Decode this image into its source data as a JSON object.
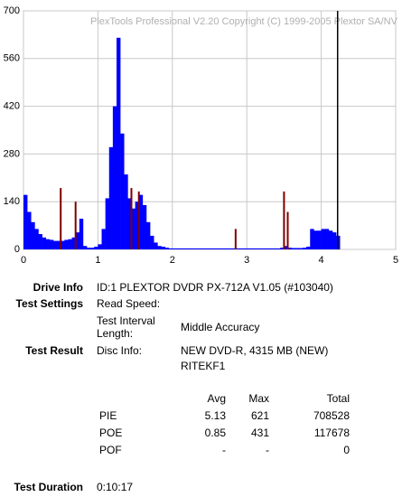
{
  "chart_data": {
    "type": "bar",
    "watermark": "PlexTools Professional V2.20 Copyright (C) 1999-2005 Plextor SA/NV",
    "x": [
      0,
      0.05,
      0.1,
      0.15,
      0.2,
      0.25,
      0.3,
      0.35,
      0.4,
      0.45,
      0.5,
      0.55,
      0.6,
      0.65,
      0.7,
      0.75,
      0.8,
      0.85,
      0.9,
      0.95,
      1.0,
      1.05,
      1.1,
      1.15,
      1.2,
      1.25,
      1.3,
      1.35,
      1.4,
      1.45,
      1.5,
      1.55,
      1.6,
      1.65,
      1.7,
      1.75,
      1.8,
      1.85,
      1.9,
      1.95,
      2.0,
      2.05,
      2.1,
      2.15,
      2.2,
      2.25,
      2.3,
      2.35,
      2.4,
      2.45,
      2.5,
      2.55,
      2.6,
      2.65,
      2.7,
      2.75,
      2.8,
      2.85,
      2.9,
      2.95,
      3.0,
      3.05,
      3.1,
      3.15,
      3.2,
      3.25,
      3.3,
      3.35,
      3.4,
      3.45,
      3.5,
      3.55,
      3.6,
      3.65,
      3.7,
      3.75,
      3.8,
      3.85,
      3.9,
      3.95,
      4.0,
      4.05,
      4.1,
      4.15,
      4.2
    ],
    "series": [
      {
        "color": "#0000ff",
        "values": [
          160,
          110,
          80,
          60,
          45,
          35,
          30,
          28,
          25,
          25,
          25,
          28,
          30,
          35,
          50,
          90,
          10,
          5,
          5,
          8,
          15,
          60,
          150,
          300,
          420,
          621,
          340,
          220,
          150,
          120,
          140,
          160,
          130,
          80,
          40,
          20,
          10,
          8,
          5,
          3,
          3,
          3,
          3,
          3,
          3,
          3,
          3,
          3,
          3,
          3,
          3,
          3,
          3,
          3,
          3,
          3,
          3,
          3,
          3,
          3,
          3,
          3,
          3,
          3,
          3,
          3,
          3,
          3,
          3,
          5,
          10,
          5,
          4,
          4,
          4,
          5,
          8,
          60,
          55,
          55,
          60,
          60,
          55,
          50,
          40
        ]
      },
      {
        "color": "#800000",
        "values": [
          null,
          null,
          null,
          null,
          null,
          null,
          null,
          null,
          null,
          null,
          180,
          null,
          null,
          null,
          140,
          null,
          null,
          null,
          null,
          null,
          null,
          null,
          null,
          null,
          null,
          null,
          null,
          null,
          null,
          180,
          null,
          170,
          null,
          null,
          null,
          null,
          null,
          null,
          null,
          null,
          null,
          null,
          null,
          null,
          null,
          null,
          null,
          null,
          null,
          null,
          null,
          null,
          null,
          null,
          null,
          null,
          null,
          60,
          null,
          null,
          null,
          null,
          null,
          null,
          null,
          null,
          null,
          null,
          null,
          null,
          170,
          110,
          null,
          null,
          null,
          null,
          null,
          null,
          null,
          null,
          null,
          null,
          null,
          null,
          null
        ]
      }
    ],
    "end_x": 4.22,
    "xlim": [
      0,
      5
    ],
    "xticks": [
      0,
      1,
      2,
      3,
      4,
      5
    ],
    "ylim": [
      0,
      700
    ],
    "yticks": [
      0,
      140,
      280,
      420,
      560,
      700
    ],
    "grid": true
  },
  "report": {
    "drive_info": {
      "label": "Drive Info",
      "value": "ID:1 PLEXTOR DVDR PX-712A V1.05 (#103040)"
    },
    "test_settings": {
      "label": "Test Settings",
      "read_speed": "Read Speed:",
      "interval_label": "Test Interval Length:",
      "interval_value": "Middle Accuracy"
    },
    "test_result": {
      "label": "Test Result",
      "disc_info_label": "Disc Info:",
      "disc_info_line1": "NEW DVD-R, 4315 MB (NEW)",
      "disc_info_line2": "RITEKF1"
    },
    "table": {
      "header": [
        "Avg",
        "Max",
        "Total"
      ],
      "rows": [
        [
          "PIE",
          "5.13",
          "621",
          "708528"
        ],
        [
          "POE",
          "0.85",
          "431",
          "117678"
        ],
        [
          "POF",
          "-",
          "-",
          "0"
        ]
      ]
    },
    "test_duration": {
      "label": "Test Duration",
      "value": "0:10:17"
    }
  }
}
